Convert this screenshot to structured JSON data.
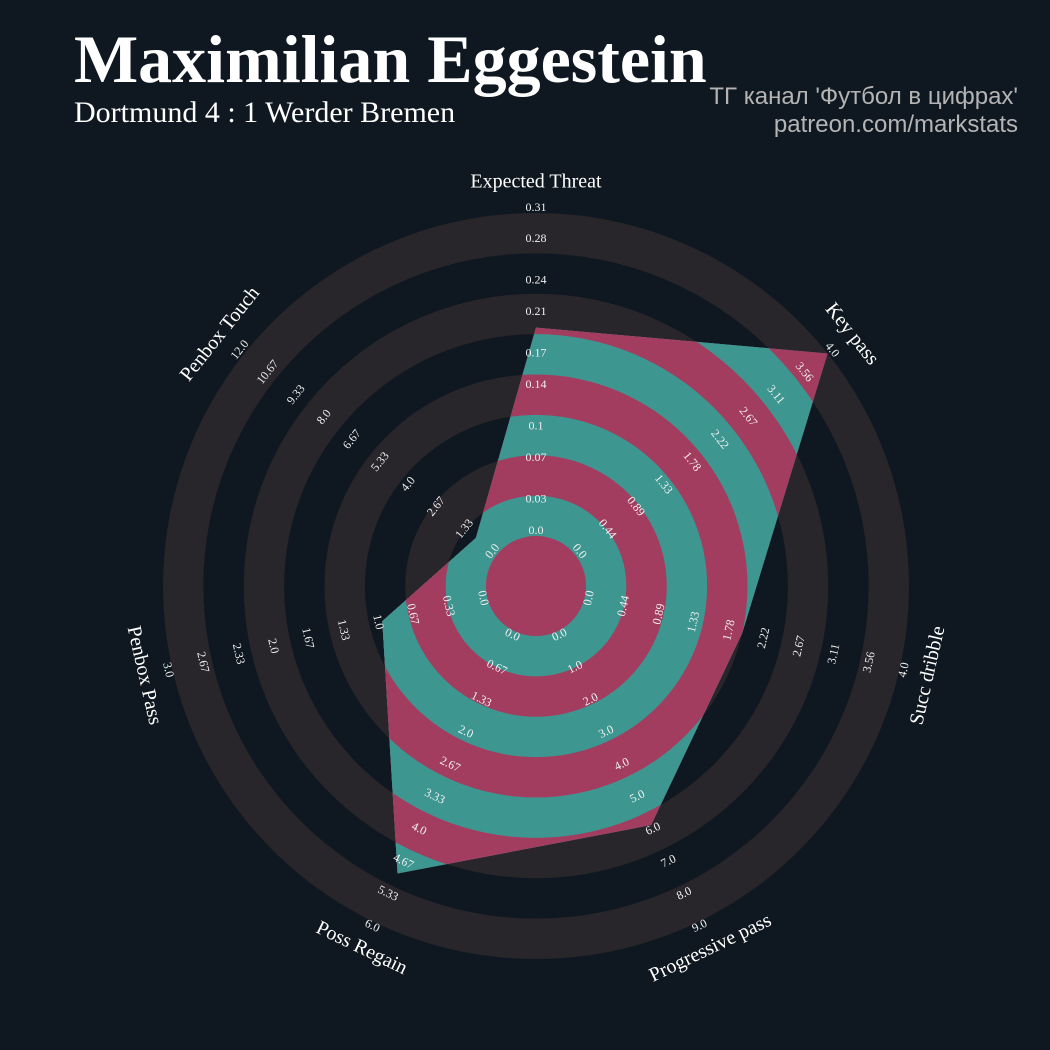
{
  "title": "Maximilian Eggestein",
  "subtitle": "Dortmund 4 : 1 Werder Bremen",
  "credits": [
    "ТГ канал 'Футбол в цифрах'",
    "patreon.com/markstats"
  ],
  "chart_data": {
    "type": "radar",
    "axes": [
      {
        "name": "Expected Threat",
        "lim": [
          0,
          0.31
        ],
        "ticks": [
          {
            "value": 0,
            "label": "0.0"
          },
          0.03,
          0.07,
          0.1,
          0.14,
          0.17,
          0.21,
          0.24,
          0.28,
          0.31
        ]
      },
      {
        "name": "Key pass",
        "lim": [
          0,
          4
        ],
        "ticks": [
          {
            "value": 0,
            "label": "0.0"
          },
          0.44,
          0.89,
          1.33,
          1.78,
          2.22,
          2.67,
          3.11,
          3.56,
          {
            "value": 4,
            "label": "4.0"
          }
        ]
      },
      {
        "name": "Succ dribble",
        "lim": [
          0,
          4
        ],
        "ticks": [
          {
            "value": 0,
            "label": "0.0"
          },
          0.44,
          0.89,
          1.33,
          1.78,
          2.22,
          2.67,
          3.11,
          3.56,
          {
            "value": 4,
            "label": "4.0"
          }
        ]
      },
      {
        "name": "Progressive pass",
        "lim": [
          0,
          9
        ],
        "ticks": [
          {
            "value": 0,
            "label": "0.0"
          },
          {
            "value": 1,
            "label": "1.0"
          },
          {
            "value": 2,
            "label": "2.0"
          },
          {
            "value": 3,
            "label": "3.0"
          },
          {
            "value": 4,
            "label": "4.0"
          },
          {
            "value": 5,
            "label": "5.0"
          },
          {
            "value": 6,
            "label": "6.0"
          },
          {
            "value": 7,
            "label": "7.0"
          },
          {
            "value": 8,
            "label": "8.0"
          },
          {
            "value": 9,
            "label": "9.0"
          }
        ]
      },
      {
        "name": "Poss Regain",
        "lim": [
          0,
          6
        ],
        "ticks": [
          {
            "value": 0,
            "label": "0.0"
          },
          0.67,
          1.33,
          {
            "value": 2,
            "label": "2.0"
          },
          2.67,
          3.33,
          {
            "value": 4,
            "label": "4.0"
          },
          4.67,
          5.33,
          {
            "value": 6,
            "label": "6.0"
          }
        ]
      },
      {
        "name": "Penbox Pass",
        "lim": [
          0,
          3
        ],
        "ticks": [
          {
            "value": 0,
            "label": "0.0"
          },
          0.33,
          0.67,
          {
            "value": 1,
            "label": "1.0"
          },
          1.33,
          1.67,
          {
            "value": 2,
            "label": "2.0"
          },
          2.33,
          2.67,
          {
            "value": 3,
            "label": "3.0"
          }
        ]
      },
      {
        "name": "Penbox Touch",
        "lim": [
          0,
          12
        ],
        "ticks": [
          {
            "value": 0,
            "label": "0.0"
          },
          1.33,
          2.67,
          {
            "value": 4,
            "label": "4.0"
          },
          5.33,
          6.67,
          {
            "value": 8,
            "label": "8.0"
          },
          9.33,
          10.67,
          {
            "value": 12,
            "label": "12.0"
          }
        ]
      }
    ],
    "values": [
      0.2,
      4,
      2,
      6,
      5,
      1,
      1
    ],
    "colors": {
      "background": "#0f1820",
      "rings": "#28252b",
      "fill": "#3d9690",
      "fill_alt": "#a33d60"
    }
  }
}
